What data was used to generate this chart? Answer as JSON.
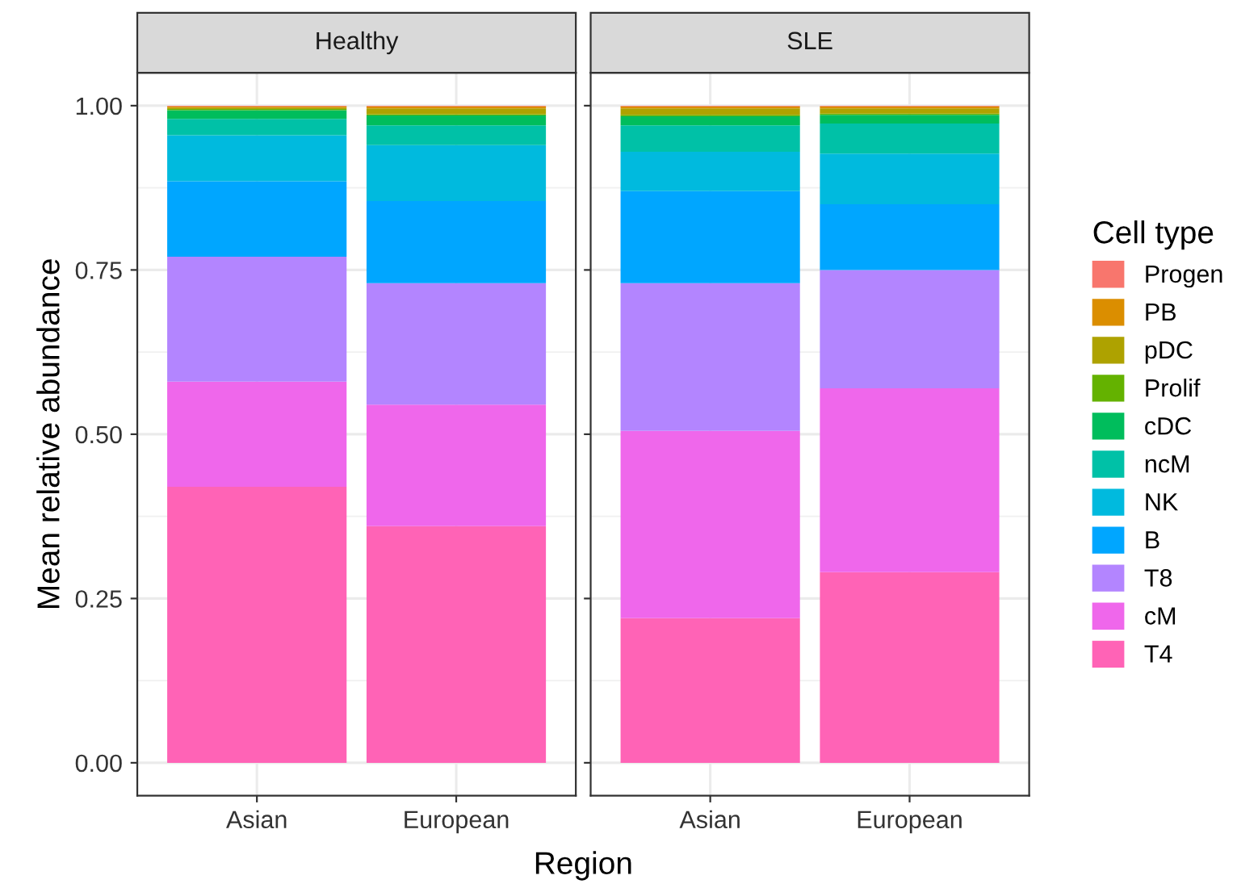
{
  "chart_data": [
    {
      "type": "bar",
      "title": "Healthy",
      "xlabel": "Region",
      "ylabel": "Mean relative abundance",
      "legend_title": "Cell type",
      "legend": "right",
      "stacked": true,
      "grid": true,
      "categories": [
        "Asian",
        "European"
      ],
      "ylim": [
        -0.05,
        1.05
      ],
      "yticks": [
        {
          "value": 0,
          "label": "0.00"
        },
        {
          "value": 0.25,
          "label": "0.25"
        },
        {
          "value": 0.5,
          "label": "0.50"
        },
        {
          "value": 0.75,
          "label": "0.75"
        },
        {
          "value": 1,
          "label": "1.00"
        }
      ],
      "series": [
        {
          "name": "T4",
          "color": "#ff63b6",
          "values": [
            0.42,
            0.36
          ]
        },
        {
          "name": "cM",
          "color": "#ef67eb",
          "values": [
            0.16,
            0.185
          ]
        },
        {
          "name": "T8",
          "color": "#b385ff",
          "values": [
            0.19,
            0.185
          ]
        },
        {
          "name": "B",
          "color": "#00a6ff",
          "values": [
            0.115,
            0.125
          ]
        },
        {
          "name": "NK",
          "color": "#00bade",
          "values": [
            0.07,
            0.085
          ]
        },
        {
          "name": "ncM",
          "color": "#00c1a7",
          "values": [
            0.025,
            0.03
          ]
        },
        {
          "name": "cDC",
          "color": "#00bd5c",
          "values": [
            0.013,
            0.015
          ]
        },
        {
          "name": "Prolif",
          "color": "#64b200",
          "values": [
            0.002,
            0.002
          ]
        },
        {
          "name": "pDC",
          "color": "#aea200",
          "values": [
            0.002,
            0.009
          ]
        },
        {
          "name": "PB",
          "color": "#db8e00",
          "values": [
            0.002,
            0.003
          ]
        },
        {
          "name": "Progen",
          "color": "#f8766d",
          "values": [
            0.001,
            0.001
          ]
        }
      ]
    },
    {
      "type": "bar",
      "title": "SLE",
      "stacked": true,
      "grid": true,
      "tick_labels": "x",
      "categories": [
        "Asian",
        "European"
      ],
      "ylim": [
        -0.05,
        1.05
      ],
      "yticks": [
        {
          "value": 0,
          "label": null
        },
        {
          "value": 0.25,
          "label": null
        },
        {
          "value": 0.5,
          "label": null
        },
        {
          "value": 0.75,
          "label": null
        },
        {
          "value": 1,
          "label": null
        }
      ],
      "series": [
        {
          "color": "#ff63b6",
          "values": [
            0.22,
            0.29
          ]
        },
        {
          "color": "#ef67eb",
          "values": [
            0.285,
            0.28
          ]
        },
        {
          "color": "#b385ff",
          "values": [
            0.225,
            0.18
          ]
        },
        {
          "color": "#00a6ff",
          "values": [
            0.14,
            0.1
          ]
        },
        {
          "color": "#00bade",
          "values": [
            0.06,
            0.077
          ]
        },
        {
          "color": "#00c1a7",
          "values": [
            0.04,
            0.046
          ]
        },
        {
          "color": "#00bd5c",
          "values": [
            0.014,
            0.013
          ]
        },
        {
          "color": "#64b200",
          "values": [
            0.002,
            0.002
          ]
        },
        {
          "color": "#aea200",
          "values": [
            0.01,
            0.008
          ]
        },
        {
          "color": "#db8e00",
          "values": [
            0.003,
            0.003
          ]
        },
        {
          "color": "#f8766d",
          "values": [
            0.001,
            0.001
          ]
        }
      ]
    }
  ]
}
